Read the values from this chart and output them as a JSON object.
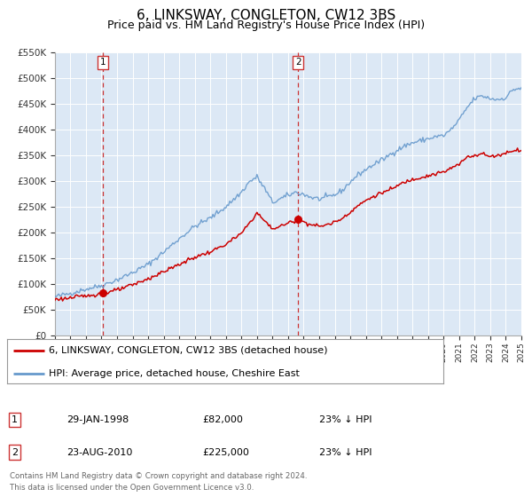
{
  "title": "6, LINKSWAY, CONGLETON, CW12 3BS",
  "subtitle": "Price paid vs. HM Land Registry's House Price Index (HPI)",
  "title_fontsize": 11,
  "subtitle_fontsize": 9,
  "background_color": "#ffffff",
  "plot_bg_color": "#dce8f5",
  "grid_color": "#ffffff",
  "x_start_year": 1995,
  "x_end_year": 2025,
  "y_min": 0,
  "y_max": 550000,
  "y_ticks": [
    0,
    50000,
    100000,
    150000,
    200000,
    250000,
    300000,
    350000,
    400000,
    450000,
    500000,
    550000
  ],
  "y_tick_labels": [
    "£0",
    "£50K",
    "£100K",
    "£150K",
    "£200K",
    "£250K",
    "£300K",
    "£350K",
    "£400K",
    "£450K",
    "£500K",
    "£550K"
  ],
  "sale1_date": 1998.08,
  "sale1_price": 82000,
  "sale1_label": "1",
  "sale2_date": 2010.64,
  "sale2_price": 225000,
  "sale2_label": "2",
  "red_line_color": "#cc0000",
  "blue_line_color": "#6699cc",
  "marker_color": "#cc0000",
  "vline_color": "#cc3333",
  "legend_entry1": "6, LINKSWAY, CONGLETON, CW12 3BS (detached house)",
  "legend_entry2": "HPI: Average price, detached house, Cheshire East",
  "table_row1_num": "1",
  "table_row1_date": "29-JAN-1998",
  "table_row1_price": "£82,000",
  "table_row1_hpi": "23% ↓ HPI",
  "table_row2_num": "2",
  "table_row2_date": "23-AUG-2010",
  "table_row2_price": "£225,000",
  "table_row2_hpi": "23% ↓ HPI",
  "footer_text1": "Contains HM Land Registry data © Crown copyright and database right 2024.",
  "footer_text2": "This data is licensed under the Open Government Licence v3.0."
}
